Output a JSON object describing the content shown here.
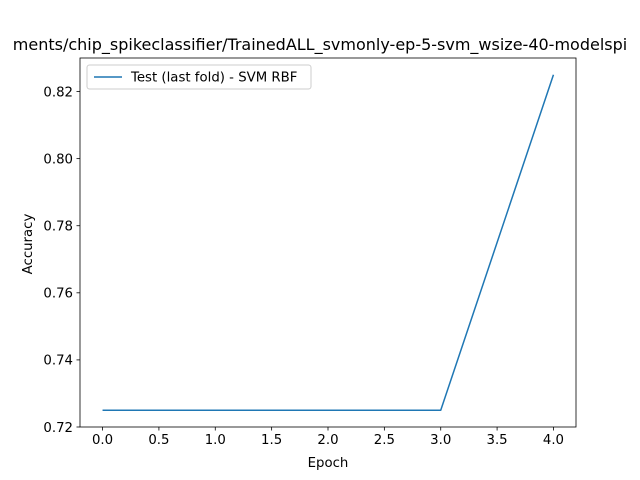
{
  "chart_data": {
    "type": "line",
    "title": "ments/chip_spikeclassifier/TrainedALL_svmonly-ep-5-svm_wsize-40-modelspi",
    "xlabel": "Epoch",
    "ylabel": "Accuracy",
    "xlim": [
      -0.2,
      4.2
    ],
    "ylim": [
      0.72,
      0.83
    ],
    "xticks": [
      0.0,
      0.5,
      1.0,
      1.5,
      2.0,
      2.5,
      3.0,
      3.5,
      4.0
    ],
    "xtick_labels": [
      "0.0",
      "0.5",
      "1.0",
      "1.5",
      "2.0",
      "2.5",
      "3.0",
      "3.5",
      "4.0"
    ],
    "yticks": [
      0.72,
      0.74,
      0.76,
      0.78,
      0.8,
      0.82
    ],
    "ytick_labels": [
      "0.72",
      "0.74",
      "0.76",
      "0.78",
      "0.80",
      "0.82"
    ],
    "grid": false,
    "legend_position": "top-left",
    "series": [
      {
        "name": "Test (last fold) - SVM RBF",
        "color": "#1f77b4",
        "x": [
          0,
          1,
          2,
          3,
          4
        ],
        "y": [
          0.725,
          0.725,
          0.725,
          0.725,
          0.825
        ]
      }
    ]
  }
}
